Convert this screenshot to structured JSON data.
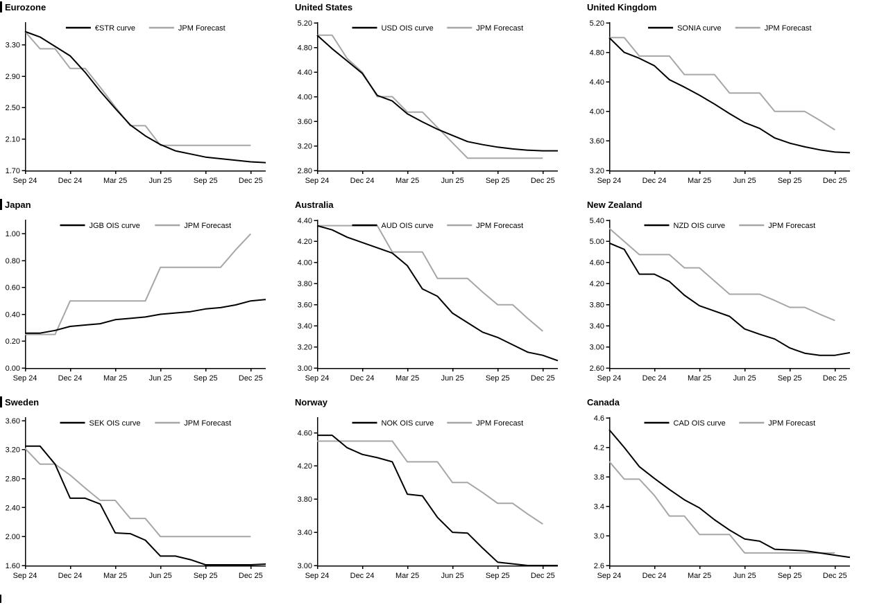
{
  "page": {
    "description": "3x3 grid of policy-rate OIS curve charts vs JPM forecasts"
  },
  "colors": {
    "market_line": "#000000",
    "forecast_line": "#a6a6a6",
    "axis": "#000000",
    "text": "#000000",
    "background": "#ffffff"
  },
  "x_axis": {
    "months": [
      "Sep 24",
      "Oct 24",
      "Nov 24",
      "Dec 24",
      "Jan 25",
      "Feb 25",
      "Mar 25",
      "Apr 25",
      "May 25",
      "Jun 25",
      "Jul 25",
      "Aug 25",
      "Sep 25",
      "Oct 25",
      "Nov 25",
      "Dec 25"
    ],
    "tick_labels": [
      "Sep 24",
      "Dec 24",
      "Mar 25",
      "Jun 25",
      "Sep 25",
      "Dec 25"
    ],
    "tick_month_indices": [
      0,
      3,
      6,
      9,
      12,
      15
    ],
    "axis_total_months": 16
  },
  "chart_data": [
    {
      "type": "line",
      "title": "Eurozone",
      "left_title_bar": true,
      "y_axis": {
        "ticks": [
          1.7,
          2.1,
          2.5,
          2.9,
          3.3
        ],
        "decimals": 2,
        "min": 1.7,
        "max": 3.58
      },
      "series": [
        {
          "name": "€STR curve",
          "role": "market",
          "values": [
            3.47,
            3.4,
            3.28,
            3.16,
            2.95,
            2.71,
            2.49,
            2.28,
            2.14,
            2.03,
            1.95,
            1.91,
            1.87,
            1.85,
            1.83,
            1.81,
            1.8
          ]
        },
        {
          "name": "JPM Forecast",
          "role": "forecast",
          "values": [
            3.47,
            3.25,
            3.25,
            3.0,
            3.0,
            2.76,
            2.51,
            2.27,
            2.27,
            2.02,
            2.02,
            2.02,
            2.02,
            2.02,
            2.02,
            2.02
          ]
        }
      ]
    },
    {
      "type": "line",
      "title": "United States",
      "left_title_bar": false,
      "y_axis": {
        "ticks": [
          2.8,
          3.2,
          3.6,
          4.0,
          4.4,
          4.8,
          5.2
        ],
        "decimals": 2,
        "min": 2.8,
        "max": 5.2
      },
      "series": [
        {
          "name": "USD OIS curve",
          "role": "market",
          "values": [
            5.0,
            4.78,
            4.58,
            4.38,
            4.02,
            3.93,
            3.72,
            3.59,
            3.47,
            3.37,
            3.27,
            3.22,
            3.18,
            3.15,
            3.13,
            3.12,
            3.12
          ]
        },
        {
          "name": "JPM Forecast",
          "role": "forecast",
          "values": [
            5.0,
            5.0,
            4.62,
            4.4,
            4.0,
            4.0,
            3.75,
            3.75,
            3.5,
            3.25,
            3.0,
            3.0,
            3.0,
            3.0,
            3.0,
            3.0
          ]
        }
      ]
    },
    {
      "type": "line",
      "title": "United Kingdom",
      "left_title_bar": false,
      "y_axis": {
        "ticks": [
          3.2,
          3.6,
          4.0,
          4.4,
          4.8,
          5.2
        ],
        "decimals": 2,
        "min": 3.2,
        "max": 5.2
      },
      "series": [
        {
          "name": "SONIA curve",
          "role": "market",
          "values": [
            5.0,
            4.8,
            4.72,
            4.62,
            4.43,
            4.33,
            4.22,
            4.1,
            3.97,
            3.85,
            3.77,
            3.64,
            3.57,
            3.52,
            3.48,
            3.45,
            3.44
          ]
        },
        {
          "name": "JPM Forecast",
          "role": "forecast",
          "values": [
            5.0,
            5.0,
            4.75,
            4.75,
            4.75,
            4.5,
            4.5,
            4.5,
            4.25,
            4.25,
            4.25,
            4.0,
            4.0,
            4.0,
            3.88,
            3.75
          ]
        }
      ]
    },
    {
      "type": "line",
      "title": "Japan",
      "left_title_bar": true,
      "y_axis": {
        "ticks": [
          0.0,
          0.2,
          0.4,
          0.6,
          0.8,
          1.0
        ],
        "decimals": 2,
        "min": 0.0,
        "max": 1.1
      },
      "series": [
        {
          "name": "JGB OIS curve",
          "role": "market",
          "values": [
            0.26,
            0.26,
            0.28,
            0.31,
            0.32,
            0.33,
            0.36,
            0.37,
            0.38,
            0.4,
            0.41,
            0.42,
            0.44,
            0.45,
            0.47,
            0.5,
            0.51
          ]
        },
        {
          "name": "JPM Forecast",
          "role": "forecast",
          "values": [
            0.25,
            0.25,
            0.25,
            0.5,
            0.5,
            0.5,
            0.5,
            0.5,
            0.5,
            0.75,
            0.75,
            0.75,
            0.75,
            0.75,
            0.88,
            1.0
          ]
        }
      ]
    },
    {
      "type": "line",
      "title": "Australia",
      "left_title_bar": false,
      "y_axis": {
        "ticks": [
          3.0,
          3.2,
          3.4,
          3.6,
          3.8,
          4.0,
          4.2,
          4.4
        ],
        "decimals": 2,
        "min": 3.0,
        "max": 4.4
      },
      "series": [
        {
          "name": "AUD OIS curve",
          "role": "market",
          "values": [
            4.35,
            4.31,
            4.24,
            4.19,
            4.14,
            4.09,
            3.97,
            3.75,
            3.68,
            3.52,
            3.43,
            3.34,
            3.29,
            3.22,
            3.15,
            3.12,
            3.07
          ]
        },
        {
          "name": "JPM Forecast",
          "role": "forecast",
          "values": [
            4.35,
            4.35,
            4.35,
            4.35,
            4.35,
            4.1,
            4.1,
            4.1,
            3.85,
            3.85,
            3.85,
            3.72,
            3.6,
            3.6,
            3.47,
            3.35
          ]
        }
      ]
    },
    {
      "type": "line",
      "title": "New Zealand",
      "left_title_bar": false,
      "y_axis": {
        "ticks": [
          2.6,
          3.0,
          3.4,
          3.8,
          4.2,
          4.6,
          5.0,
          5.4
        ],
        "decimals": 2,
        "min": 2.6,
        "max": 5.4
      },
      "series": [
        {
          "name": "NZD OIS curve",
          "role": "market",
          "values": [
            4.97,
            4.85,
            4.38,
            4.38,
            4.24,
            3.98,
            3.78,
            3.68,
            3.58,
            3.34,
            3.24,
            3.15,
            2.98,
            2.88,
            2.84,
            2.84,
            2.89
          ]
        },
        {
          "name": "JPM Forecast",
          "role": "forecast",
          "values": [
            5.25,
            5.0,
            4.75,
            4.75,
            4.75,
            4.5,
            4.5,
            4.25,
            4.0,
            4.0,
            4.0,
            3.88,
            3.75,
            3.75,
            3.62,
            3.5
          ]
        }
      ]
    },
    {
      "type": "line",
      "title": "Sweden",
      "left_title_bar": true,
      "y_axis": {
        "ticks": [
          1.6,
          2.0,
          2.4,
          2.8,
          3.2,
          3.6
        ],
        "decimals": 2,
        "min": 1.6,
        "max": 3.64
      },
      "series": [
        {
          "name": "SEK OIS curve",
          "role": "market",
          "values": [
            3.25,
            3.25,
            3.0,
            2.53,
            2.53,
            2.45,
            2.05,
            2.04,
            1.95,
            1.73,
            1.73,
            1.68,
            1.61,
            1.61,
            1.61,
            1.61,
            1.62
          ]
        },
        {
          "name": "JPM Forecast",
          "role": "forecast",
          "values": [
            3.22,
            3.0,
            3.0,
            2.85,
            2.67,
            2.5,
            2.5,
            2.25,
            2.25,
            2.0,
            2.0,
            2.0,
            2.0,
            2.0,
            2.0,
            2.0
          ]
        }
      ]
    },
    {
      "type": "line",
      "title": "Norway",
      "left_title_bar": false,
      "y_axis": {
        "ticks": [
          3.0,
          3.4,
          3.8,
          4.2,
          4.6
        ],
        "decimals": 2,
        "min": 3.0,
        "max": 4.78
      },
      "series": [
        {
          "name": "NOK OIS curve",
          "role": "market",
          "values": [
            4.57,
            4.57,
            4.42,
            4.34,
            4.3,
            4.25,
            3.86,
            3.84,
            3.58,
            3.4,
            3.39,
            3.21,
            3.04,
            3.02,
            3.0,
            3.0,
            3.0
          ]
        },
        {
          "name": "JPM Forecast",
          "role": "forecast",
          "values": [
            4.5,
            4.5,
            4.5,
            4.5,
            4.5,
            4.5,
            4.25,
            4.25,
            4.25,
            4.0,
            4.0,
            3.88,
            3.75,
            3.75,
            3.62,
            3.5
          ]
        }
      ]
    },
    {
      "type": "line",
      "title": "Canada",
      "left_title_bar": false,
      "y_axis": {
        "ticks": [
          2.6,
          3.0,
          3.4,
          3.8,
          4.2,
          4.6
        ],
        "decimals": 1,
        "min": 2.6,
        "max": 4.6
      },
      "series": [
        {
          "name": "CAD OIS curve",
          "role": "market",
          "values": [
            4.44,
            4.2,
            3.94,
            3.78,
            3.63,
            3.49,
            3.38,
            3.22,
            3.08,
            2.96,
            2.93,
            2.82,
            2.81,
            2.8,
            2.77,
            2.74,
            2.71
          ]
        },
        {
          "name": "JPM Forecast",
          "role": "forecast",
          "values": [
            4.01,
            3.77,
            3.77,
            3.55,
            3.27,
            3.27,
            3.02,
            3.02,
            3.02,
            2.77,
            2.77,
            2.77,
            2.77,
            2.77,
            2.77,
            2.77
          ]
        }
      ]
    }
  ]
}
